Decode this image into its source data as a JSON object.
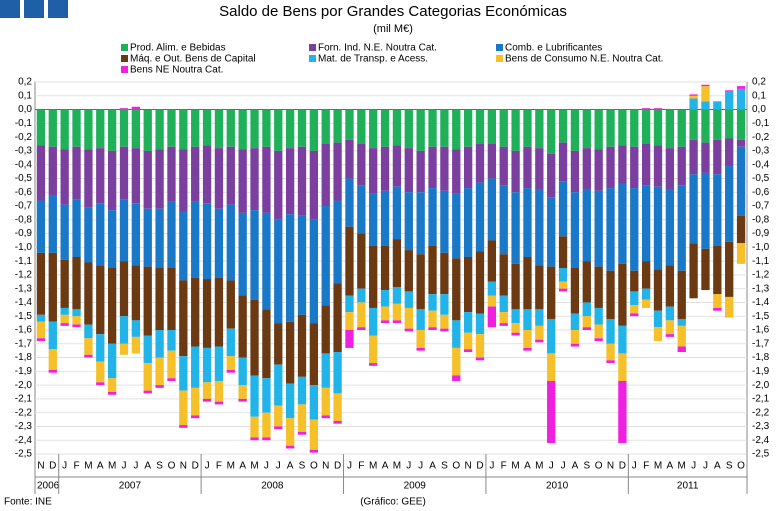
{
  "chart_data": {
    "type": "stacked_bar",
    "title": "Saldo de Bens por Grandes Categorias Económicas",
    "subtitle": "(mil M€)",
    "source": "Fonte: INE",
    "credit": "(Gráfico: GEE)",
    "categories": [
      "N",
      "D",
      "J",
      "F",
      "M",
      "A",
      "M",
      "J",
      "J",
      "A",
      "S",
      "O",
      "N",
      "D",
      "J",
      "F",
      "M",
      "A",
      "M",
      "J",
      "J",
      "A",
      "S",
      "O",
      "N",
      "D",
      "J",
      "F",
      "M",
      "A",
      "M",
      "J",
      "J",
      "A",
      "S",
      "O",
      "N",
      "D",
      "J",
      "F",
      "M",
      "A",
      "M",
      "J",
      "J",
      "A",
      "S",
      "O",
      "N",
      "D",
      "J",
      "F",
      "M",
      "A",
      "M",
      "J",
      "J",
      "A",
      "S",
      "O"
    ],
    "years": [
      {
        "label": "2006",
        "months": 2
      },
      {
        "label": "2007",
        "months": 12
      },
      {
        "label": "2008",
        "months": 12
      },
      {
        "label": "2009",
        "months": 12
      },
      {
        "label": "2010",
        "months": 12
      },
      {
        "label": "2011",
        "months": 10
      }
    ],
    "ylim": [
      -2.5,
      0.2
    ],
    "yticks": [
      {
        "value": 0.2,
        "label": "0,2"
      },
      {
        "value": 0.1,
        "label": "0,1"
      },
      {
        "value": 0,
        "label": "0,0"
      },
      {
        "value": -0.1,
        "label": "-0,1"
      },
      {
        "value": -0.2,
        "label": "-0,2"
      },
      {
        "value": -0.3,
        "label": "-0,3"
      },
      {
        "value": -0.4,
        "label": "-0,4"
      },
      {
        "value": -0.5,
        "label": "-0,5"
      },
      {
        "value": -0.6,
        "label": "-0,6"
      },
      {
        "value": -0.7,
        "label": "-0,7"
      },
      {
        "value": -0.8,
        "label": "-0,8"
      },
      {
        "value": -0.9,
        "label": "-0,9"
      },
      {
        "value": -1,
        "label": "-1,0"
      },
      {
        "value": -1.1,
        "label": "-1,1"
      },
      {
        "value": -1.2,
        "label": "-1,2"
      },
      {
        "value": -1.3,
        "label": "-1,3"
      },
      {
        "value": -1.4,
        "label": "-1,4"
      },
      {
        "value": -1.5,
        "label": "-1,5"
      },
      {
        "value": -1.6,
        "label": "-1,6"
      },
      {
        "value": -1.7,
        "label": "-1,7"
      },
      {
        "value": -1.8,
        "label": "-1,8"
      },
      {
        "value": -1.9,
        "label": "-1,9"
      },
      {
        "value": -2,
        "label": "-2,0"
      },
      {
        "value": -2.1,
        "label": "-2,1"
      },
      {
        "value": -2.2,
        "label": "-2,2"
      },
      {
        "value": -2.3,
        "label": "-2,3"
      },
      {
        "value": -2.4,
        "label": "-2,4"
      },
      {
        "value": -2.5,
        "label": "-2,5"
      }
    ],
    "grid": true,
    "series": [
      {
        "name": "Prod. Alim. e Bebidas",
        "color": "#21b05a",
        "values": [
          -0.26,
          -0.27,
          -0.29,
          -0.27,
          -0.29,
          -0.28,
          -0.3,
          -0.27,
          -0.28,
          -0.3,
          -0.29,
          -0.27,
          -0.29,
          -0.27,
          -0.26,
          -0.28,
          -0.27,
          -0.29,
          -0.28,
          -0.27,
          -0.3,
          -0.28,
          -0.27,
          -0.3,
          -0.25,
          -0.24,
          -0.22,
          -0.25,
          -0.28,
          -0.27,
          -0.26,
          -0.28,
          -0.3,
          -0.27,
          -0.27,
          -0.29,
          -0.27,
          -0.25,
          -0.25,
          -0.27,
          -0.3,
          -0.27,
          -0.28,
          -0.32,
          -0.24,
          -0.3,
          -0.28,
          -0.29,
          -0.27,
          -0.26,
          -0.27,
          -0.25,
          -0.26,
          -0.28,
          -0.27,
          -0.22,
          -0.24,
          -0.22,
          -0.21,
          -0.22
        ]
      },
      {
        "name": "Forn. Ind. N.E. Noutra Cat.",
        "color": "#7b3fa0",
        "values": [
          -0.4,
          -0.35,
          -0.4,
          -0.38,
          -0.42,
          -0.4,
          -0.43,
          -0.38,
          -0.4,
          -0.42,
          -0.43,
          -0.4,
          -0.45,
          -0.4,
          -0.42,
          -0.44,
          -0.42,
          -0.46,
          -0.45,
          -0.48,
          -0.5,
          -0.48,
          -0.5,
          -0.5,
          -0.45,
          -0.42,
          -0.28,
          -0.3,
          -0.33,
          -0.32,
          -0.3,
          -0.32,
          -0.3,
          -0.3,
          -0.32,
          -0.32,
          -0.3,
          -0.28,
          -0.25,
          -0.28,
          -0.3,
          -0.3,
          -0.3,
          -0.32,
          -0.28,
          -0.3,
          -0.3,
          -0.3,
          -0.3,
          -0.28,
          -0.3,
          -0.3,
          -0.3,
          -0.3,
          -0.28,
          -0.25,
          -0.22,
          -0.25,
          -0.2,
          -0.05
        ]
      },
      {
        "name": "Comb. e Lubrificantes",
        "color": "#1a78c8",
        "values": [
          -0.38,
          -0.42,
          -0.4,
          -0.42,
          -0.4,
          -0.45,
          -0.42,
          -0.45,
          -0.45,
          -0.42,
          -0.43,
          -0.48,
          -0.5,
          -0.55,
          -0.55,
          -0.5,
          -0.55,
          -0.6,
          -0.65,
          -0.7,
          -0.75,
          -0.78,
          -0.72,
          -0.75,
          -0.72,
          -0.6,
          -0.35,
          -0.35,
          -0.38,
          -0.4,
          -0.38,
          -0.42,
          -0.45,
          -0.42,
          -0.45,
          -0.47,
          -0.5,
          -0.5,
          -0.45,
          -0.5,
          -0.52,
          -0.5,
          -0.55,
          -0.5,
          -0.4,
          -0.55,
          -0.52,
          -0.55,
          -0.6,
          -0.58,
          -0.6,
          -0.55,
          -0.6,
          -0.55,
          -0.62,
          -0.5,
          -0.55,
          -0.52,
          -0.55,
          -0.5
        ]
      },
      {
        "name": "Máq. e Out. Bens de Capital",
        "color": "#6b3a12",
        "values": [
          -0.45,
          -0.5,
          -0.35,
          -0.38,
          -0.45,
          -0.5,
          -0.55,
          -0.4,
          -0.4,
          -0.5,
          -0.45,
          -0.45,
          -0.55,
          -0.5,
          -0.5,
          -0.5,
          -0.35,
          -0.45,
          -0.55,
          -0.5,
          -0.3,
          -0.45,
          -0.45,
          -0.45,
          -0.35,
          -0.5,
          -0.5,
          -0.4,
          -0.45,
          -0.32,
          -0.35,
          -0.3,
          -0.4,
          -0.35,
          -0.3,
          -0.45,
          -0.4,
          -0.45,
          -0.3,
          -0.3,
          -0.33,
          -0.38,
          -0.32,
          -0.38,
          -0.23,
          -0.33,
          -0.3,
          -0.3,
          -0.35,
          -0.45,
          -0.15,
          -0.2,
          -0.3,
          -0.3,
          -0.35,
          -0.4,
          -0.3,
          -0.35,
          -0.4,
          -0.2
        ]
      },
      {
        "name": "Mat. de Transp. e Acess.",
        "color": "#22b4e8",
        "values": [
          -0.05,
          -0.2,
          -0.05,
          -0.05,
          -0.1,
          -0.2,
          -0.25,
          -0.2,
          -0.12,
          -0.2,
          -0.2,
          -0.15,
          -0.25,
          -0.3,
          -0.25,
          -0.25,
          -0.2,
          -0.2,
          -0.3,
          -0.25,
          -0.3,
          -0.25,
          -0.2,
          -0.25,
          -0.25,
          -0.3,
          -0.12,
          -0.1,
          -0.2,
          -0.12,
          -0.12,
          -0.12,
          -0.15,
          -0.12,
          -0.15,
          -0.2,
          -0.15,
          -0.15,
          -0.1,
          -0.12,
          -0.1,
          -0.15,
          -0.12,
          -0.25,
          -0.1,
          -0.12,
          -0.1,
          -0.12,
          -0.18,
          -0.2,
          -0.1,
          -0.08,
          -0.12,
          -0.1,
          -0.05,
          0.08,
          0.06,
          0.06,
          0.13,
          0.15
        ]
      },
      {
        "name": "Bens de Consumo N.E. Noutra Cat.",
        "color": "#f5c02a",
        "values": [
          -0.12,
          -0.15,
          -0.06,
          -0.06,
          -0.12,
          -0.15,
          -0.1,
          -0.08,
          -0.12,
          -0.2,
          -0.2,
          -0.2,
          -0.25,
          -0.2,
          -0.12,
          -0.15,
          -0.1,
          -0.1,
          -0.15,
          -0.18,
          -0.15,
          -0.2,
          -0.2,
          -0.22,
          -0.2,
          -0.2,
          -0.13,
          -0.18,
          -0.2,
          -0.1,
          -0.12,
          -0.15,
          -0.13,
          -0.12,
          -0.1,
          -0.2,
          -0.12,
          -0.17,
          -0.08,
          -0.08,
          -0.07,
          -0.13,
          -0.1,
          -0.2,
          -0.05,
          -0.1,
          -0.08,
          -0.1,
          -0.12,
          -0.2,
          -0.06,
          -0.06,
          -0.1,
          -0.1,
          -0.15,
          0.02,
          0.11,
          -0.1,
          -0.15,
          -0.15
        ]
      },
      {
        "name": "Bens NE Noutra Cat.",
        "color": "#f020e0",
        "values": [
          -0.02,
          -0.02,
          -0.02,
          -0.02,
          -0.02,
          -0.02,
          -0.02,
          0.01,
          0.02,
          -0.02,
          -0.02,
          -0.02,
          -0.02,
          -0.02,
          -0.02,
          -0.02,
          -0.02,
          -0.02,
          -0.02,
          -0.02,
          -0.02,
          -0.02,
          -0.02,
          -0.02,
          -0.02,
          -0.02,
          -0.13,
          -0.02,
          -0.02,
          -0.02,
          -0.02,
          -0.02,
          -0.02,
          -0.02,
          -0.02,
          -0.04,
          -0.02,
          -0.02,
          -0.15,
          -0.02,
          -0.02,
          -0.02,
          -0.02,
          -0.45,
          -0.02,
          -0.02,
          -0.02,
          -0.02,
          -0.02,
          -0.45,
          -0.02,
          0.01,
          0.01,
          -0.02,
          -0.04,
          0.01,
          0.01,
          -0.02,
          0.01,
          0.02
        ]
      }
    ]
  }
}
